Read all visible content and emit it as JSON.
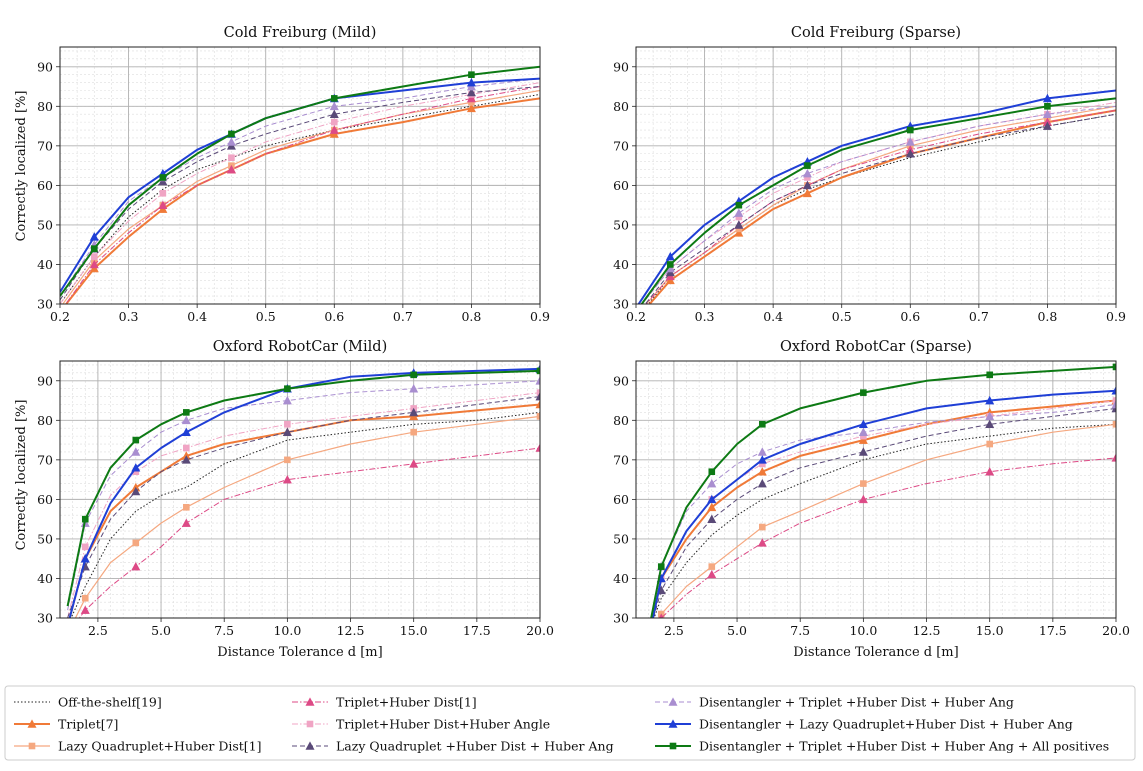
{
  "figure": {
    "ylabel_top": "Correctly localized [%]",
    "ylabel_bottom": "Correctly localized [%]",
    "xlabel_left": "Distance Tolerance d [m]",
    "xlabel_right": "Distance Tolerance d [m]"
  },
  "series_styles": [
    {
      "name": "Off-the-shelf[19]",
      "color": "#222222",
      "dash": "1.5,2",
      "width": 1.0,
      "marker": "none"
    },
    {
      "name": "Triplet[7]",
      "color": "#f07a38",
      "dash": "",
      "width": 2.0,
      "marker": "triangle"
    },
    {
      "name": "Lazy Quadruplet+Huber Dist[1]",
      "color": "#f5a880",
      "dash": "",
      "width": 1.2,
      "marker": "square"
    },
    {
      "name": "Triplet+Huber Dist[1]",
      "color": "#dd4a86",
      "dash": "6,2,1.5,2",
      "width": 1.0,
      "marker": "triangle"
    },
    {
      "name": "Triplet+Huber Dist+Huber Angle",
      "color": "#f0a4c4",
      "dash": "6,2,1.5,2",
      "width": 1.0,
      "marker": "square"
    },
    {
      "name": "Lazy Quadruplet +Huber Dist + Huber Ang",
      "color": "#5a4a78",
      "dash": "5,3",
      "width": 1.0,
      "marker": "triangle"
    },
    {
      "name": "Disentangler + Triplet +Huber Dist + Huber Ang",
      "color": "#a98ed0",
      "dash": "5,3",
      "width": 1.0,
      "marker": "triangle"
    },
    {
      "name": "Disentangler + Lazy Quadruplet+Huber Dist + Huber Ang",
      "color": "#1f3fd6",
      "dash": "",
      "width": 2.0,
      "marker": "triangle"
    },
    {
      "name": "Disentangler + Triplet +Huber Dist + Huber Ang + All positives",
      "color": "#0d7a14",
      "dash": "",
      "width": 2.0,
      "marker": "square"
    }
  ],
  "chart_data": [
    {
      "type": "line",
      "title": "Cold Freiburg (Mild)",
      "xlabel": "",
      "ylabel": "Correctly localized [%]",
      "xlim": [
        0.2,
        0.9
      ],
      "ylim": [
        30,
        95
      ],
      "xticks": [
        "0.2",
        "0.3",
        "0.4",
        "0.5",
        "0.6",
        "0.7",
        "0.8",
        "0.9"
      ],
      "yticks": [
        "30",
        "40",
        "50",
        "60",
        "70",
        "80",
        "90"
      ],
      "grid": true,
      "x": [
        0.2,
        0.25,
        0.3,
        0.35,
        0.4,
        0.45,
        0.5,
        0.6,
        0.7,
        0.8,
        0.9
      ],
      "series": [
        {
          "values": [
            30,
            42,
            52,
            59,
            64,
            67,
            70,
            74,
            77,
            80,
            83
          ]
        },
        {
          "values": [
            28,
            39,
            47,
            54,
            60,
            64,
            68,
            73,
            76,
            79.5,
            82
          ]
        },
        {
          "values": [
            29,
            41,
            49,
            55,
            61,
            65,
            69,
            74,
            78,
            81,
            84
          ]
        },
        {
          "values": [
            28,
            40,
            48,
            55,
            60,
            64,
            68,
            74,
            78,
            82,
            85
          ]
        },
        {
          "values": [
            30,
            42,
            51,
            58,
            63,
            67,
            71,
            76,
            80,
            83,
            86
          ]
        },
        {
          "values": [
            31,
            44,
            54,
            61,
            66,
            70,
            73,
            78,
            81,
            83.5,
            85
          ]
        },
        {
          "values": [
            32,
            45,
            56,
            62,
            67,
            71,
            75,
            80,
            82,
            85,
            87
          ]
        },
        {
          "values": [
            33,
            47,
            57,
            63,
            69,
            73,
            77,
            82,
            84,
            86,
            87
          ]
        },
        {
          "values": [
            32,
            44,
            55,
            62,
            68,
            73,
            77,
            82,
            85,
            88,
            90
          ]
        }
      ]
    },
    {
      "type": "line",
      "title": "Cold Freiburg (Sparse)",
      "xlabel": "",
      "ylabel": "",
      "xlim": [
        0.2,
        0.9
      ],
      "ylim": [
        30,
        95
      ],
      "xticks": [
        "0.2",
        "0.3",
        "0.4",
        "0.5",
        "0.6",
        "0.7",
        "0.8",
        "0.9"
      ],
      "yticks": [
        "30",
        "40",
        "50",
        "60",
        "70",
        "80",
        "90"
      ],
      "grid": true,
      "x": [
        0.2,
        0.25,
        0.3,
        0.35,
        0.4,
        0.45,
        0.5,
        0.6,
        0.7,
        0.8,
        0.9
      ],
      "series": [
        {
          "values": [
            26,
            37,
            43,
            49,
            55,
            59,
            62,
            67,
            71,
            75,
            78
          ]
        },
        {
          "values": [
            26,
            36,
            42,
            48,
            54,
            58,
            62,
            68,
            72,
            76,
            79
          ]
        },
        {
          "values": [
            27,
            37,
            43,
            49,
            55,
            60,
            64,
            70,
            74,
            77,
            80
          ]
        },
        {
          "values": [
            27,
            37,
            43,
            50,
            56,
            60,
            64,
            69,
            73,
            76,
            79
          ]
        },
        {
          "values": [
            28,
            39,
            46,
            52,
            58,
            62,
            66,
            71,
            75,
            78,
            81
          ]
        },
        {
          "values": [
            27,
            38,
            44,
            50,
            56,
            60,
            63,
            68,
            72,
            75,
            78
          ]
        },
        {
          "values": [
            28,
            39,
            46,
            53,
            59,
            63,
            66,
            71,
            75,
            78,
            80
          ]
        },
        {
          "values": [
            29,
            42,
            50,
            56,
            62,
            66,
            70,
            75,
            78,
            82,
            84
          ]
        },
        {
          "values": [
            28,
            40,
            48,
            55,
            60,
            65,
            69,
            74,
            77,
            80,
            82
          ]
        }
      ]
    },
    {
      "type": "line",
      "title": "Oxford RobotCar (Mild)",
      "xlabel": "Distance Tolerance d [m]",
      "ylabel": "Correctly localized [%]",
      "xlim": [
        1,
        20
      ],
      "ylim": [
        30,
        95
      ],
      "xticks": [
        "2.5",
        "5.0",
        "7.5",
        "10.0",
        "12.5",
        "15.0",
        "17.5",
        "20.0"
      ],
      "yticks": [
        "30",
        "40",
        "50",
        "60",
        "70",
        "80",
        "90"
      ],
      "grid": true,
      "x": [
        1.3,
        2,
        3,
        4,
        5,
        6,
        7.5,
        10,
        12.5,
        15,
        17.5,
        20
      ],
      "series": [
        {
          "values": [
            28,
            38,
            50,
            57,
            61,
            63,
            69,
            75,
            77,
            79,
            80,
            82
          ]
        },
        {
          "values": [
            28,
            45,
            57,
            63,
            67,
            71,
            74,
            77,
            80,
            81,
            82.5,
            84
          ]
        },
        {
          "values": [
            26,
            35,
            44,
            49,
            54,
            58,
            63,
            70,
            74,
            77,
            79,
            81
          ]
        },
        {
          "values": [
            26,
            32,
            38,
            43,
            48,
            54,
            60,
            65,
            67,
            69,
            71,
            73
          ]
        },
        {
          "values": [
            30,
            48,
            61,
            67,
            71,
            73,
            76,
            79,
            81,
            83,
            85,
            87
          ]
        },
        {
          "values": [
            30,
            43,
            55,
            62,
            67,
            70,
            73,
            77,
            80,
            82,
            84,
            86
          ]
        },
        {
          "values": [
            32,
            54,
            66,
            72,
            77,
            80,
            83,
            85,
            87,
            88,
            89,
            90
          ]
        },
        {
          "values": [
            28,
            45,
            59,
            68,
            73,
            77,
            82,
            88,
            91,
            92,
            92.5,
            93
          ]
        },
        {
          "values": [
            33,
            55,
            68,
            75,
            79,
            82,
            85,
            88,
            90,
            91.5,
            92,
            92.5
          ]
        }
      ]
    },
    {
      "type": "line",
      "title": "Oxford RobotCar (Sparse)",
      "xlabel": "Distance Tolerance d [m]",
      "ylabel": "",
      "xlim": [
        1,
        20
      ],
      "ylim": [
        30,
        95
      ],
      "xticks": [
        "2.5",
        "5.0",
        "7.5",
        "10.0",
        "12.5",
        "15.0",
        "17.5",
        "20.0"
      ],
      "yticks": [
        "30",
        "40",
        "50",
        "60",
        "70",
        "80",
        "90"
      ],
      "grid": true,
      "x": [
        1.6,
        2,
        3,
        4,
        5,
        6,
        7.5,
        10,
        12.5,
        15,
        17.5,
        20
      ],
      "series": [
        {
          "values": [
            28,
            35,
            44,
            51,
            56,
            60,
            64,
            70,
            74,
            76,
            78,
            79
          ]
        },
        {
          "values": [
            28,
            40,
            50,
            58,
            63,
            67,
            71,
            75,
            79,
            82,
            83.5,
            85
          ]
        },
        {
          "values": [
            26,
            31,
            38,
            43,
            48,
            53,
            57,
            64,
            70,
            74,
            77,
            79
          ]
        },
        {
          "values": [
            25,
            30,
            36,
            41,
            45,
            49,
            54,
            60,
            64,
            67,
            69,
            70.5
          ]
        },
        {
          "values": [
            28,
            40,
            52,
            60,
            65,
            69,
            72,
            76,
            79,
            81,
            83,
            85
          ]
        },
        {
          "values": [
            28,
            37,
            48,
            55,
            60,
            64,
            68,
            72,
            76,
            79,
            81,
            83
          ]
        },
        {
          "values": [
            30,
            43,
            57,
            64,
            69,
            72,
            75,
            77,
            79.5,
            81,
            82,
            84
          ]
        },
        {
          "values": [
            28,
            40,
            52,
            60,
            65,
            70,
            74,
            79,
            83,
            85,
            86.5,
            87.5
          ]
        },
        {
          "values": [
            30,
            43,
            58,
            67,
            74,
            79,
            83,
            87,
            90,
            91.5,
            92.5,
            93.5
          ]
        }
      ]
    }
  ]
}
